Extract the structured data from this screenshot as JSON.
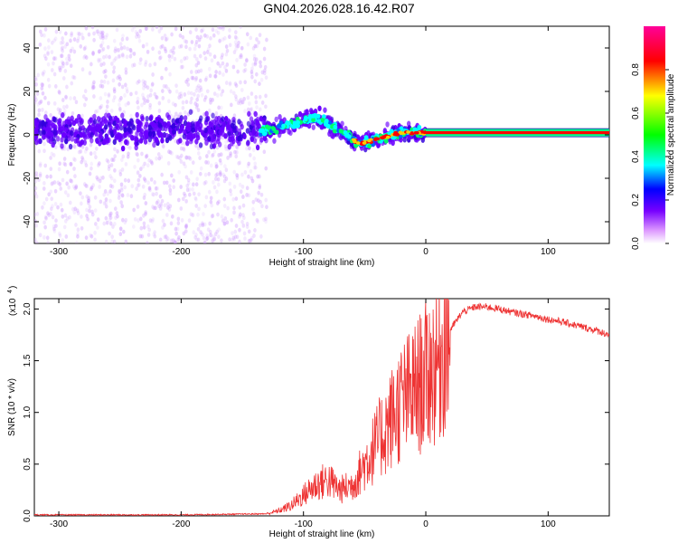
{
  "title": "GN04.2026.028.16.42.R07",
  "chart_data": [
    {
      "type": "heatmap",
      "xlabel": "Height of straight line (km)",
      "ylabel": "Frequency (Hz)",
      "xlim": [
        -320,
        150
      ],
      "ylim": [
        -50,
        50
      ],
      "xticks": [
        -300,
        -200,
        -100,
        0,
        100
      ],
      "yticks": [
        -40,
        -20,
        0,
        20,
        40
      ],
      "colorbar": {
        "label": "Normalized spectral amplitude",
        "range": [
          0,
          1
        ],
        "ticks": [
          0.0,
          0.2,
          0.4,
          0.6,
          0.8
        ],
        "colors": [
          "#ffffff",
          "#cc99ff",
          "#6600ff",
          "#0000ff",
          "#00ffff",
          "#00ff00",
          "#ffff00",
          "#ff0000",
          "#ff00aa"
        ]
      },
      "trend": [
        {
          "x": -320,
          "y": 2
        },
        {
          "x": -130,
          "y": 2
        },
        {
          "x": -115,
          "y": 4
        },
        {
          "x": -90,
          "y": 8
        },
        {
          "x": -70,
          "y": 2
        },
        {
          "x": -55,
          "y": -4
        },
        {
          "x": -40,
          "y": -2
        },
        {
          "x": -20,
          "y": 1
        },
        {
          "x": 0,
          "y": 1
        },
        {
          "x": 150,
          "y": 0
        }
      ]
    },
    {
      "type": "line",
      "xlabel": "Height of straight line (km)",
      "ylabel": "SNR (10 * v/v)",
      "scale_note": "(x10",
      "scale_exp": "4",
      "xlim": [
        -320,
        150
      ],
      "ylim": [
        0,
        2.1
      ],
      "xticks": [
        -300,
        -200,
        -100,
        0,
        100
      ],
      "yticks": [
        0.0,
        0.5,
        1.0,
        1.5,
        2.0
      ],
      "series": [
        {
          "name": "SNR",
          "color": "#ee3333",
          "x": [
            -320,
            -200,
            -130,
            -120,
            -110,
            -100,
            -90,
            -80,
            -70,
            -60,
            -50,
            -40,
            -30,
            -20,
            -10,
            0,
            10,
            20,
            30,
            40,
            50,
            60,
            70,
            80,
            90,
            100,
            110,
            120,
            130,
            140,
            150
          ],
          "values": [
            0.01,
            0.01,
            0.02,
            0.05,
            0.1,
            0.2,
            0.3,
            0.35,
            0.25,
            0.3,
            0.5,
            0.7,
            0.9,
            1.1,
            1.2,
            1.35,
            1.5,
            1.8,
            1.97,
            2.02,
            2.02,
            2.0,
            1.97,
            1.95,
            1.93,
            1.9,
            1.88,
            1.85,
            1.82,
            1.79,
            1.75
          ]
        }
      ]
    }
  ]
}
